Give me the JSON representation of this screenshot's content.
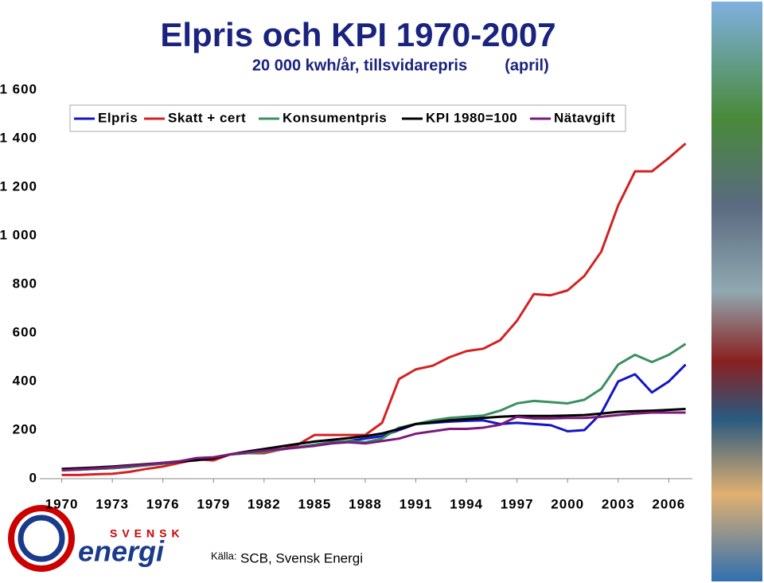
{
  "chart_data": {
    "type": "line",
    "title": "Elpris och KPI 1970-2007",
    "subtitle": "20 000 kwh/år, tillsvidarepris",
    "subtitle_note": "(april)",
    "source_label": "Källa:",
    "source": "SCB, Svensk Energi",
    "logo_top": "SVENSK",
    "logo_bottom": "energi",
    "x": [
      1970,
      1971,
      1972,
      1973,
      1974,
      1975,
      1976,
      1977,
      1978,
      1979,
      1980,
      1981,
      1982,
      1983,
      1984,
      1985,
      1986,
      1987,
      1988,
      1989,
      1990,
      1991,
      1992,
      1993,
      1994,
      1995,
      1996,
      1997,
      1998,
      1999,
      2000,
      2001,
      2002,
      2003,
      2004,
      2005,
      2006,
      2007
    ],
    "xlim": [
      1968.7,
      2007.4
    ],
    "xticks": [
      1970,
      1973,
      1976,
      1979,
      1982,
      1985,
      1988,
      1991,
      1994,
      1997,
      2000,
      2003,
      2006
    ],
    "ylim": [
      0,
      1600
    ],
    "yticks": [
      0,
      200,
      400,
      600,
      800,
      {
        "value": 1000,
        "label": "1 000"
      },
      {
        "value": 1200,
        "label": "1 200"
      },
      {
        "value": 1400,
        "label": "1 400"
      },
      {
        "value": 1600,
        "label": "1 600"
      }
    ],
    "series": [
      {
        "name": "Elpris",
        "color": "#1414c8",
        "values": [
          35,
          37,
          40,
          43,
          48,
          55,
          62,
          70,
          80,
          85,
          100,
          105,
          110,
          120,
          130,
          140,
          150,
          155,
          165,
          175,
          200,
          225,
          230,
          235,
          238,
          240,
          225,
          230,
          225,
          220,
          195,
          200,
          270,
          400,
          430,
          355,
          400,
          470
        ]
      },
      {
        "name": "Skatt + cert",
        "color": "#d42222",
        "values": [
          15,
          15,
          18,
          20,
          28,
          40,
          50,
          65,
          80,
          75,
          100,
          105,
          105,
          120,
          140,
          180,
          180,
          180,
          180,
          230,
          410,
          450,
          465,
          500,
          525,
          535,
          570,
          650,
          760,
          755,
          775,
          835,
          935,
          1125,
          1265,
          1265,
          1320,
          1380
        ]
      },
      {
        "name": "Konsumentpris",
        "color": "#3a9060",
        "values": [
          35,
          37,
          40,
          43,
          48,
          55,
          62,
          70,
          80,
          85,
          100,
          105,
          110,
          120,
          130,
          140,
          148,
          155,
          150,
          165,
          210,
          225,
          240,
          250,
          255,
          260,
          280,
          310,
          320,
          315,
          310,
          325,
          370,
          470,
          510,
          480,
          510,
          555
        ]
      },
      {
        "name": "KPI 1980=100",
        "color": "#000000",
        "values": [
          40,
          43,
          46,
          50,
          55,
          60,
          65,
          70,
          76,
          83,
          100,
          112,
          122,
          133,
          143,
          153,
          160,
          167,
          175,
          186,
          205,
          225,
          232,
          240,
          245,
          250,
          255,
          258,
          258,
          258,
          260,
          262,
          268,
          275,
          278,
          280,
          283,
          287
        ]
      },
      {
        "name": "Nätavgift",
        "color": "#7a1a7a",
        "values": [
          35,
          38,
          42,
          47,
          52,
          58,
          65,
          72,
          85,
          88,
          100,
          108,
          115,
          122,
          128,
          135,
          145,
          150,
          145,
          155,
          165,
          185,
          195,
          205,
          205,
          210,
          222,
          255,
          248,
          248,
          250,
          250,
          255,
          262,
          268,
          272,
          272,
          272
        ]
      }
    ]
  }
}
